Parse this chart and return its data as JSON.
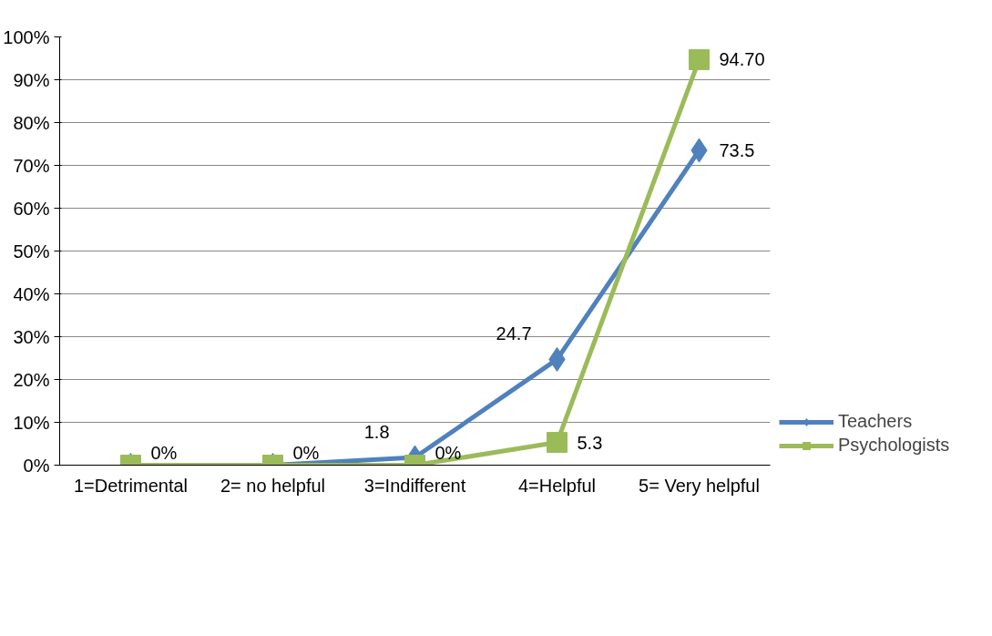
{
  "chart_data": {
    "type": "line",
    "categories": [
      "1=Detrimental",
      "2= no helpful",
      "3=Indifferent",
      "4=Helpful",
      "5= Very helpful"
    ],
    "series": [
      {
        "name": "Teachers",
        "color": "#4f81bd",
        "marker": "diamond",
        "values": [
          0,
          0,
          1.8,
          24.7,
          73.5
        ],
        "value_labels": [
          null,
          null,
          "1.8",
          "24.7",
          "73.5"
        ]
      },
      {
        "name": "Psychologists",
        "color": "#9bbb59",
        "marker": "square",
        "values": [
          0,
          0,
          0,
          5.3,
          94.7
        ],
        "value_labels": [
          "0%",
          "0%",
          "0%",
          "5.3",
          "94.70"
        ]
      }
    ],
    "ylim": [
      0,
      100
    ],
    "yticks": [
      {
        "value": 0,
        "label": "0%"
      },
      {
        "value": 10,
        "label": "10%"
      },
      {
        "value": 20,
        "label": "20%"
      },
      {
        "value": 30,
        "label": "30%"
      },
      {
        "value": 40,
        "label": "40%"
      },
      {
        "value": 50,
        "label": "50%"
      },
      {
        "value": 60,
        "label": "60%"
      },
      {
        "value": 70,
        "label": "70%"
      },
      {
        "value": 80,
        "label": "80%"
      },
      {
        "value": 90,
        "label": "90%"
      },
      {
        "value": 100,
        "label": "100%"
      }
    ],
    "grid": "y",
    "legend": "bottom right",
    "line_style": "solid"
  }
}
